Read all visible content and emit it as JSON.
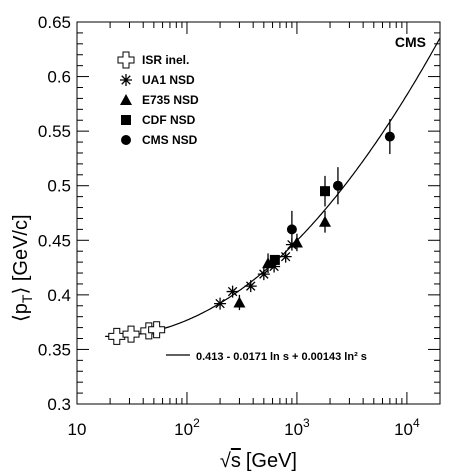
{
  "chart_data": {
    "type": "scatter",
    "x_scale": "log",
    "xlim": [
      10,
      20000
    ],
    "ylim": [
      0.3,
      0.65
    ],
    "xlabel_prefix": "√",
    "xlabel_var": "s",
    "xlabel_unit": "[GeV]",
    "ylabel_main": "⟨p",
    "ylabel_sub": "T",
    "ylabel_unit": "⟩ [GeV/c]",
    "y_ticks": [
      "0.3",
      "0.35",
      "0.4",
      "0.45",
      "0.5",
      "0.55",
      "0.6",
      "0.65"
    ],
    "y_tick_values": [
      0.3,
      0.35,
      0.4,
      0.45,
      0.5,
      0.55,
      0.6,
      0.65
    ],
    "x_ticks": [
      {
        "value": 10,
        "base": "10",
        "exp": ""
      },
      {
        "value": 100,
        "base": "10",
        "exp": "2"
      },
      {
        "value": 1000,
        "base": "10",
        "exp": "3"
      },
      {
        "value": 10000,
        "base": "10",
        "exp": "4"
      }
    ],
    "experiment_label": "CMS",
    "fit": {
      "label": "0.413 - 0.0171 ln s + 0.00143 ln² s",
      "a": 0.413,
      "b": -0.0171,
      "c": 0.00143,
      "x_range": [
        18,
        20000
      ]
    },
    "grid": false,
    "legend_position": "top-left",
    "series": [
      {
        "name": "ISR inel.",
        "marker": "open-cross",
        "points": [
          {
            "x": 23,
            "y": 0.362
          },
          {
            "x": 31,
            "y": 0.364
          },
          {
            "x": 45,
            "y": 0.367
          },
          {
            "x": 53,
            "y": 0.368
          }
        ]
      },
      {
        "name": "UA1 NSD",
        "marker": "asterisk",
        "points": [
          {
            "x": 200,
            "y": 0.392
          },
          {
            "x": 260,
            "y": 0.403
          },
          {
            "x": 380,
            "y": 0.408
          },
          {
            "x": 500,
            "y": 0.419
          },
          {
            "x": 620,
            "y": 0.426
          },
          {
            "x": 790,
            "y": 0.435
          },
          {
            "x": 900,
            "y": 0.446
          }
        ]
      },
      {
        "name": "E735 NSD",
        "marker": "filled-triangle",
        "points": [
          {
            "x": 300,
            "y": 0.393,
            "err": 0.007
          },
          {
            "x": 546,
            "y": 0.429,
            "err": 0.009
          },
          {
            "x": 1000,
            "y": 0.448,
            "err": 0.008
          },
          {
            "x": 1800,
            "y": 0.467,
            "err": 0.01
          }
        ]
      },
      {
        "name": "CDF NSD",
        "marker": "filled-square",
        "points": [
          {
            "x": 630,
            "y": 0.432,
            "err": 0.004
          },
          {
            "x": 1800,
            "y": 0.495,
            "err": 0.014
          }
        ]
      },
      {
        "name": "CMS NSD",
        "marker": "filled-circle",
        "points": [
          {
            "x": 900,
            "y": 0.46,
            "err": 0.017
          },
          {
            "x": 2360,
            "y": 0.5,
            "err": 0.017
          },
          {
            "x": 7000,
            "y": 0.545,
            "err": 0.016
          }
        ]
      }
    ],
    "colors": {
      "ink": "#000000",
      "background": "#ffffff"
    }
  }
}
